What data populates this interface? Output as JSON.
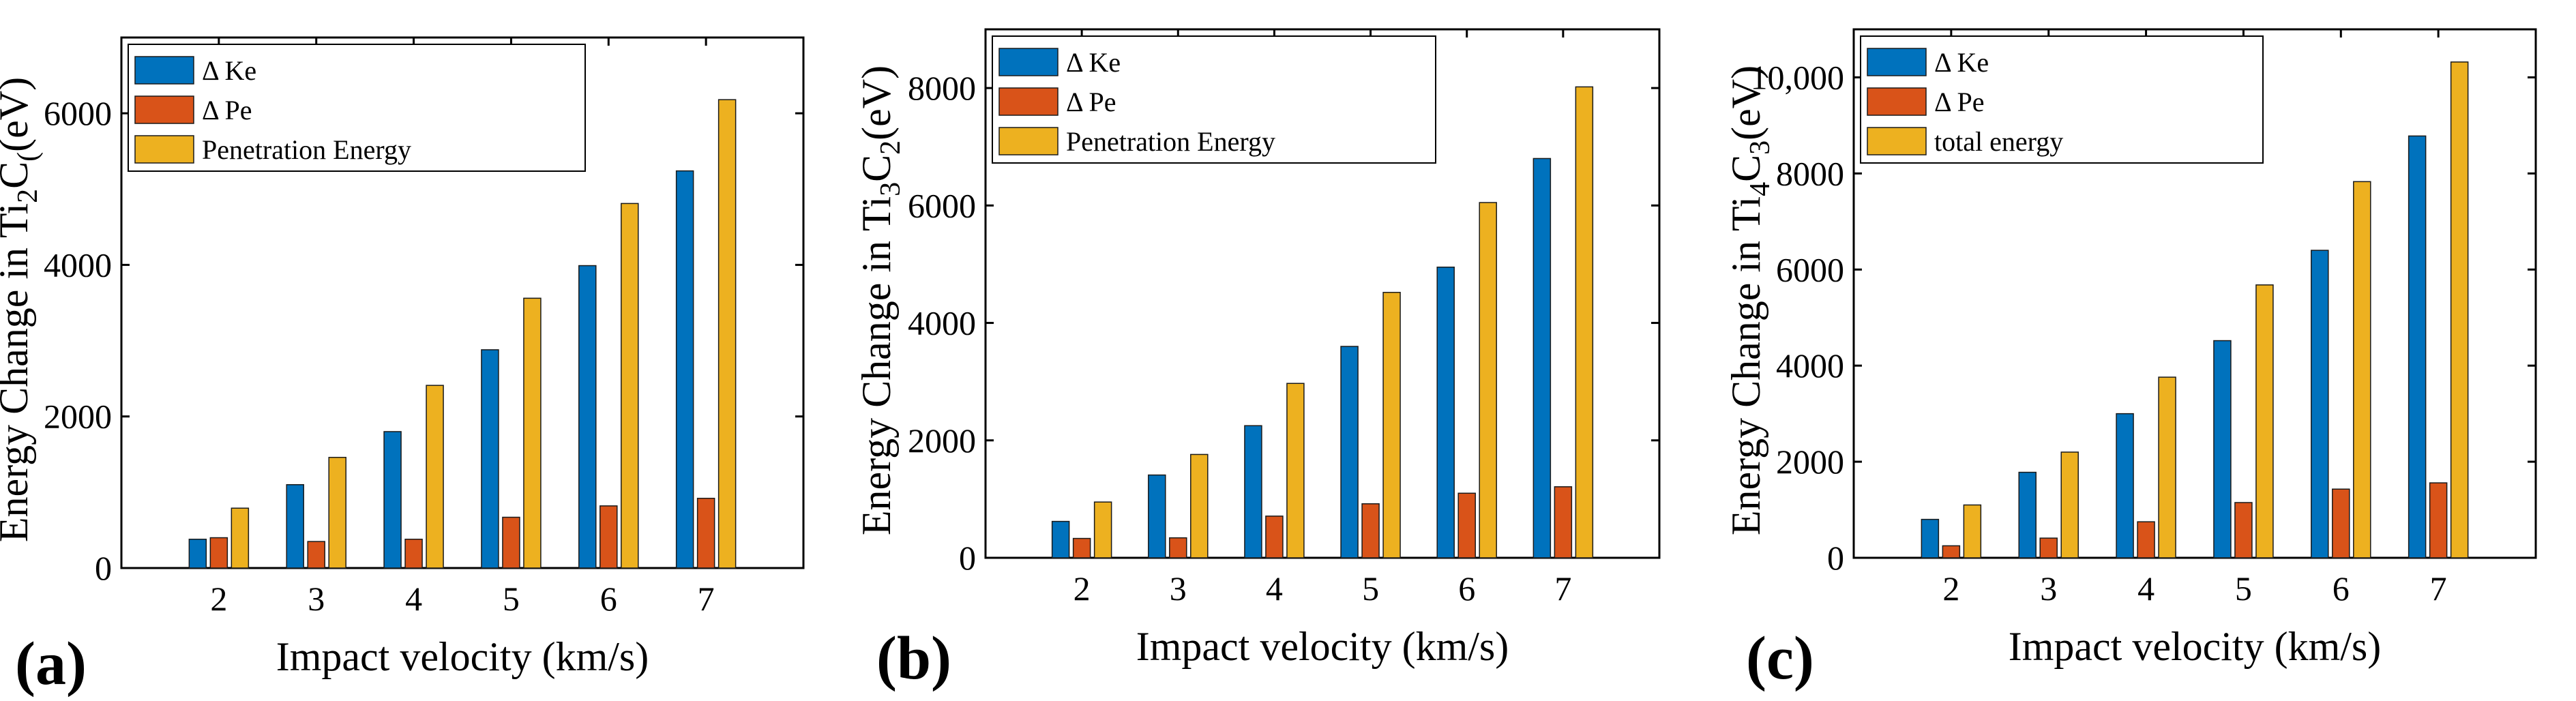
{
  "colors": {
    "ke": "#0072BD",
    "pe": "#D95319",
    "pen": "#EDB120"
  },
  "chart_data": [
    {
      "type": "bar",
      "panel": "(a)",
      "ylabel_text": "Energy Change in Ti",
      "ylabel_sub1": "2",
      "ylabel_mid": "C",
      "ylabel_sub2": "(",
      "ylabel_unit": "(eV)",
      "xlabel": "Impact velocity (km/s)",
      "categories": [
        "2",
        "3",
        "4",
        "5",
        "6",
        "7"
      ],
      "ylim": [
        0,
        7000
      ],
      "yticks": [
        0,
        2000,
        4000,
        6000
      ],
      "ytick_labels": [
        "0",
        "2000",
        "4000",
        "6000"
      ],
      "legend_position": "top-left",
      "series": [
        {
          "name": "Δ Ke",
          "key": "ke",
          "values": [
            380,
            1100,
            1800,
            2880,
            3990,
            5240
          ]
        },
        {
          "name": "Δ Pe",
          "key": "pe",
          "values": [
            400,
            350,
            380,
            670,
            820,
            920
          ]
        },
        {
          "name": "Penetration Energy",
          "key": "pen",
          "values": [
            790,
            1460,
            2410,
            3560,
            4810,
            6180
          ]
        }
      ]
    },
    {
      "type": "bar",
      "panel": "(b)",
      "ylabel_text": "Energy Change in Ti",
      "ylabel_sub1": "3",
      "ylabel_mid": "C",
      "ylabel_sub2": "2",
      "ylabel_unit": "(eV)",
      "xlabel": "Impact velocity (km/s)",
      "categories": [
        "2",
        "3",
        "4",
        "5",
        "6",
        "7"
      ],
      "ylim": [
        0,
        9000
      ],
      "yticks": [
        0,
        2000,
        4000,
        6000,
        8000
      ],
      "ytick_labels": [
        "0",
        "2000",
        "4000",
        "6000",
        "8000"
      ],
      "legend_position": "top-left",
      "series": [
        {
          "name": "Δ Ke",
          "key": "ke",
          "values": [
            620,
            1410,
            2250,
            3600,
            4950,
            6800
          ]
        },
        {
          "name": "Δ Pe",
          "key": "pe",
          "values": [
            330,
            340,
            710,
            920,
            1100,
            1210
          ]
        },
        {
          "name": "Penetration Energy",
          "key": "pen",
          "values": [
            950,
            1760,
            2970,
            4520,
            6050,
            8020
          ]
        }
      ]
    },
    {
      "type": "bar",
      "panel": "(c)",
      "ylabel_text": "Energy Change in Ti",
      "ylabel_sub1": "4",
      "ylabel_mid": "C",
      "ylabel_sub2": "3",
      "ylabel_unit": "(eV)",
      "xlabel": "Impact velocity (km/s)",
      "categories": [
        "2",
        "3",
        "4",
        "5",
        "6",
        "7"
      ],
      "ylim": [
        0,
        11000
      ],
      "yticks": [
        0,
        2000,
        4000,
        6000,
        8000,
        10000
      ],
      "ytick_labels": [
        "0",
        "2000",
        "4000",
        "6000",
        "8000",
        "10,000"
      ],
      "legend_position": "top-left",
      "series": [
        {
          "name": "Δ Ke",
          "key": "ke",
          "values": [
            800,
            1780,
            3000,
            4520,
            6400,
            8780
          ]
        },
        {
          "name": "Δ Pe",
          "key": "pe",
          "values": [
            250,
            410,
            750,
            1150,
            1430,
            1560
          ]
        },
        {
          "name": "total energy",
          "key": "pen",
          "values": [
            1100,
            2200,
            3760,
            5680,
            7830,
            10320
          ]
        }
      ]
    }
  ]
}
